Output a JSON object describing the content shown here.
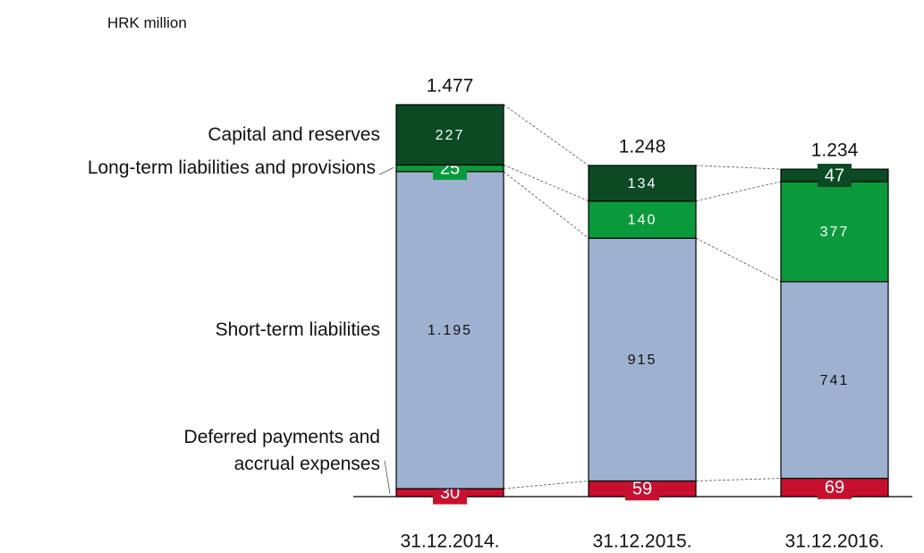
{
  "chart_data": {
    "type": "stacked-bar",
    "subtitle": "HRK million",
    "categories": [
      "31.12.2014.",
      "31.12.2015.",
      "31.12.2016."
    ],
    "series": [
      {
        "name": "Deferred payments and accrual expenses",
        "color": "#c8102e",
        "values": [
          30,
          59,
          69
        ]
      },
      {
        "name": "Short-term liabilities",
        "color": "#9fb1d0",
        "values": [
          1195,
          915,
          741
        ],
        "value_labels": [
          "1.195",
          "915",
          "741"
        ]
      },
      {
        "name": "Long-term liabilities and provisions",
        "color": "#0a9a3c",
        "values": [
          25,
          140,
          377
        ]
      },
      {
        "name": "Capital and reserves",
        "color": "#0b4a23",
        "values": [
          227,
          134,
          47
        ]
      }
    ],
    "totals": {
      "values": [
        1477,
        1248,
        1234
      ],
      "value_labels": [
        "1.477",
        "1.248",
        "1.234"
      ]
    }
  }
}
